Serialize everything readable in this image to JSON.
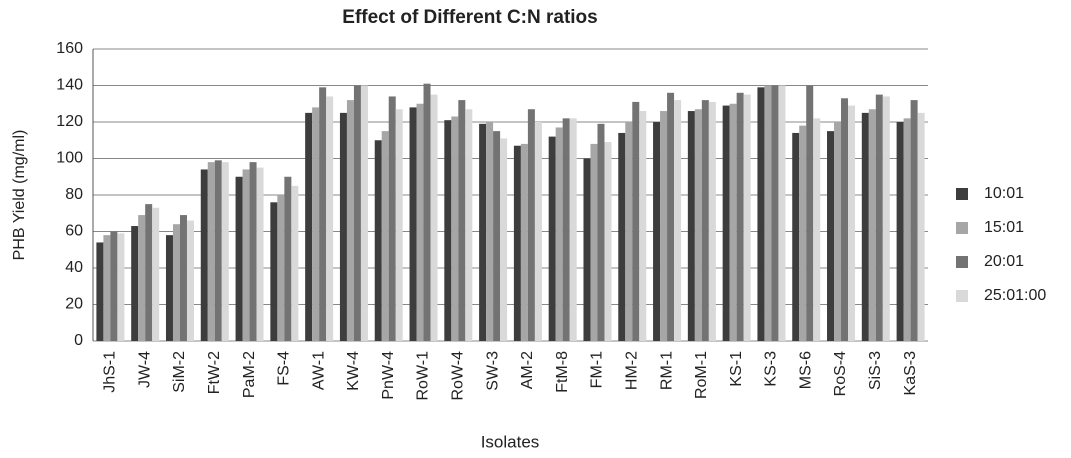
{
  "chart_data": {
    "type": "bar",
    "title": "Effect of Different C:N ratios",
    "x_label": "Isolates",
    "y_label": "PHB Yield (mg/ml)",
    "categories": [
      "JhS-1",
      "JW-4",
      "SiM-2",
      "FtW-2",
      "PaM-2",
      "FS-4",
      "AW-1",
      "KW-4",
      "PnW-4",
      "RoW-1",
      "RoW-4",
      "SW-3",
      "AM-2",
      "FtM-8",
      "FM-1",
      "HM-2",
      "RM-1",
      "RoM-1",
      "KS-1",
      "KS-3",
      "MS-6",
      "RoS-4",
      "SiS-3",
      "KaS-3"
    ],
    "series": [
      {
        "name": "10:01",
        "color": "#3d3d3d",
        "values": [
          54,
          63,
          58,
          94,
          90,
          76,
          125,
          125,
          110,
          128,
          121,
          119,
          107,
          112,
          100,
          114,
          120,
          126,
          129,
          139,
          114,
          115,
          125,
          120
        ]
      },
      {
        "name": "15:01",
        "color": "#a6a6a6",
        "values": [
          58,
          69,
          64,
          98,
          94,
          80,
          128,
          132,
          115,
          130,
          123,
          120,
          108,
          117,
          108,
          120,
          126,
          127,
          130,
          140,
          118,
          120,
          127,
          122
        ]
      },
      {
        "name": "20:01",
        "color": "#737373",
        "values": [
          60,
          75,
          69,
          99,
          98,
          90,
          139,
          140,
          134,
          141,
          132,
          115,
          127,
          122,
          119,
          131,
          136,
          132,
          136,
          140,
          140,
          133,
          135,
          132
        ]
      },
      {
        "name": "25:01:00",
        "color": "#d9d9d9",
        "values": [
          59,
          73,
          66,
          98,
          95,
          85,
          134,
          140,
          127,
          135,
          127,
          111,
          120,
          122,
          109,
          126,
          132,
          131,
          135,
          140,
          122,
          129,
          134,
          125
        ]
      }
    ],
    "ylim": [
      0,
      160
    ],
    "yticks": [
      0,
      20,
      40,
      60,
      80,
      100,
      120,
      140,
      160
    ],
    "grid": true,
    "legend": "right"
  }
}
